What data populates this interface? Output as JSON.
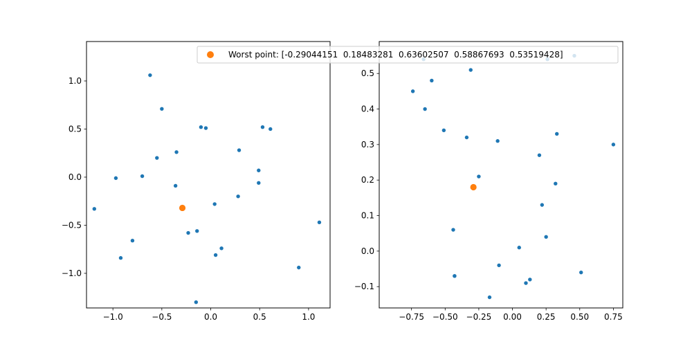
{
  "chart_data": {
    "type": "scatter",
    "legend": {
      "label": "Worst point: [-0.29044151  0.18483281  0.63602507  0.58867693  0.53519428]",
      "placement": "top-right",
      "marker_color": "#ff7f0e"
    },
    "colors": {
      "points": "#1f77b4",
      "worst": "#ff7f0e"
    },
    "grid": false,
    "panels": [
      {
        "xlim": [
          -1.27,
          1.22
        ],
        "ylim": [
          -1.36,
          1.41
        ],
        "xticks": [
          -1.0,
          -0.5,
          0.0,
          0.5,
          1.0
        ],
        "xtick_labels": [
          "−1.0",
          "−0.5",
          "0.0",
          "0.5",
          "1.0"
        ],
        "yticks": [
          -1.0,
          -0.5,
          0.0,
          0.5,
          1.0
        ],
        "ytick_labels": [
          "−1.0",
          "−0.5",
          "0.0",
          "0.5",
          "1.0"
        ],
        "points": [
          [
            -0.62,
            1.06
          ],
          [
            -0.5,
            0.71
          ],
          [
            -0.1,
            0.52
          ],
          [
            -0.05,
            0.51
          ],
          [
            0.53,
            0.52
          ],
          [
            0.61,
            0.5
          ],
          [
            -0.35,
            0.26
          ],
          [
            -0.55,
            0.2
          ],
          [
            0.29,
            0.28
          ],
          [
            0.49,
            0.07
          ],
          [
            -0.7,
            0.01
          ],
          [
            -0.97,
            -0.01
          ],
          [
            -0.36,
            -0.09
          ],
          [
            0.49,
            -0.06
          ],
          [
            0.28,
            -0.2
          ],
          [
            0.04,
            -0.28
          ],
          [
            -1.19,
            -0.33
          ],
          [
            1.11,
            -0.47
          ],
          [
            -0.23,
            -0.58
          ],
          [
            -0.14,
            -0.56
          ],
          [
            -0.8,
            -0.66
          ],
          [
            0.11,
            -0.74
          ],
          [
            -0.92,
            -0.84
          ],
          [
            0.05,
            -0.81
          ],
          [
            0.9,
            -0.94
          ],
          [
            -0.15,
            -1.3
          ]
        ],
        "worst": [
          -0.29,
          -0.32
        ]
      },
      {
        "xlim": [
          -0.99,
          0.82
        ],
        "ylim": [
          -0.16,
          0.59
        ],
        "xticks": [
          -0.75,
          -0.5,
          -0.25,
          0.0,
          0.25,
          0.5,
          0.75
        ],
        "xtick_labels": [
          "−0.75",
          "−0.50",
          "−0.25",
          "0.00",
          "0.25",
          "0.50",
          "0.75"
        ],
        "yticks": [
          -0.1,
          0.0,
          0.1,
          0.2,
          0.3,
          0.4,
          0.5
        ],
        "ytick_labels": [
          "−0.1",
          "0.0",
          "0.1",
          "0.2",
          "0.3",
          "0.4",
          "0.5"
        ],
        "points": [
          [
            -0.66,
            0.54
          ],
          [
            -0.31,
            0.51
          ],
          [
            0.26,
            0.54
          ],
          [
            0.46,
            0.55
          ],
          [
            -0.6,
            0.48
          ],
          [
            -0.74,
            0.45
          ],
          [
            -0.65,
            0.4
          ],
          [
            -0.51,
            0.34
          ],
          [
            -0.34,
            0.32
          ],
          [
            -0.11,
            0.31
          ],
          [
            0.33,
            0.33
          ],
          [
            0.75,
            0.3
          ],
          [
            0.2,
            0.27
          ],
          [
            -0.25,
            0.21
          ],
          [
            0.32,
            0.19
          ],
          [
            0.22,
            0.13
          ],
          [
            -0.44,
            0.06
          ],
          [
            0.25,
            0.04
          ],
          [
            0.05,
            0.01
          ],
          [
            -0.1,
            -0.04
          ],
          [
            -0.43,
            -0.07
          ],
          [
            -0.43,
            -0.07
          ],
          [
            0.51,
            -0.06
          ],
          [
            0.1,
            -0.09
          ],
          [
            0.13,
            -0.08
          ],
          [
            -0.17,
            -0.13
          ]
        ],
        "worst": [
          -0.29,
          0.18
        ]
      }
    ]
  }
}
